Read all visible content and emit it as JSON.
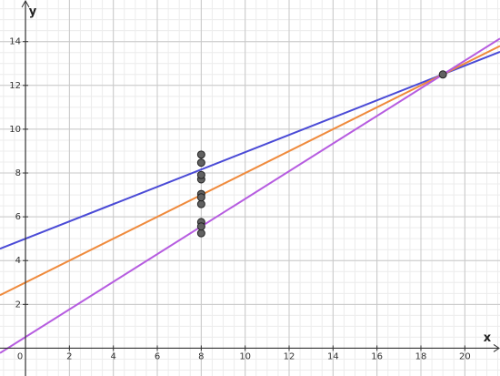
{
  "chart_data": {
    "type": "scatter",
    "x_label": "x",
    "y_label": "y",
    "x": [
      8,
      8,
      8,
      8,
      8,
      8,
      8,
      19,
      8,
      8,
      8
    ],
    "values": [
      6.58,
      5.76,
      7.71,
      8.84,
      8.47,
      7.04,
      5.25,
      12.5,
      5.56,
      7.91,
      6.89
    ],
    "color": "#616161",
    "lines": [
      {
        "color": "#4a4ad6",
        "slope": 0.395,
        "intercept": 5
      },
      {
        "color": "#ef8a3c",
        "slope": 0.5,
        "intercept": 3
      },
      {
        "color": "#b65ce0",
        "slope": 0.631,
        "intercept": 0.51
      }
    ],
    "xlim": [
      -1.16,
      21.6
    ],
    "ylim": [
      -1.27,
      15.9
    ],
    "xticks": [
      0,
      2,
      4,
      6,
      8,
      10,
      12,
      14,
      16,
      18,
      20
    ],
    "yticks": [
      2,
      4,
      6,
      8,
      10,
      12,
      14
    ],
    "grid": true,
    "minor_step": 0.5
  }
}
